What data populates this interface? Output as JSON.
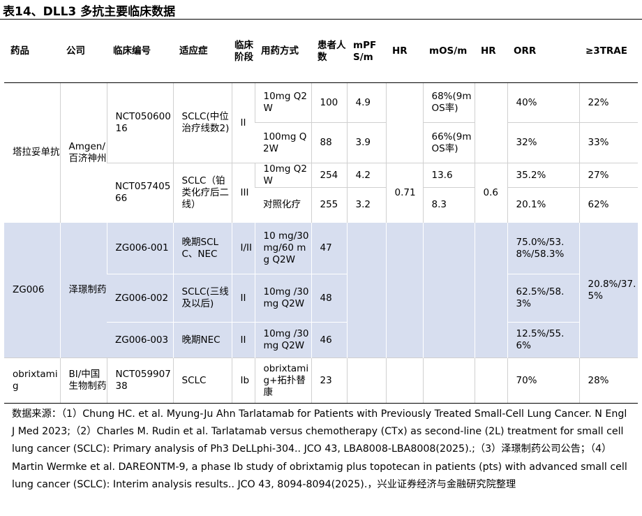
{
  "title": "表14、DLL3 多抗主要临床数据",
  "headers": {
    "drug": "药品",
    "company": "公司",
    "trial": "临床编号",
    "indication": "适应症",
    "stage": "临床阶段",
    "regimen": "用药方式",
    "patients": "患者人数",
    "mpfs": "mPFS/m",
    "hr1": "HR",
    "mos": "mOS/m",
    "hr2": "HR",
    "orr": "ORR",
    "trae": "≥3TRAE"
  },
  "rows": {
    "r1": {
      "drug": "塔拉妥单抗",
      "company": "Amgen/百济神州",
      "trial": "NCT05060016",
      "indication": "SCLC(中位治疗线数2)",
      "stage": "II",
      "regimen": "10mg Q2W",
      "patients": "100",
      "mpfs": "4.9",
      "mos": "68%(9m OS率)",
      "orr": "40%",
      "trae": "22%"
    },
    "r2": {
      "regimen": "100mg Q2W",
      "patients": "88",
      "mpfs": "3.9",
      "mos": "66%(9m OS率)",
      "orr": "32%",
      "trae": "33%"
    },
    "r3": {
      "trial": "NCT05740566",
      "indication": "SCLC（铂类化疗后二线）",
      "stage": "III",
      "regimen": "10mg Q2W",
      "patients": "254",
      "mpfs": "4.2",
      "hr1": "0.71",
      "mos": "13.6",
      "hr2": "0.6",
      "orr": "35.2%",
      "trae": "27%"
    },
    "r4": {
      "regimen": "对照化疗",
      "patients": "255",
      "mpfs": "3.2",
      "mos": "8.3",
      "orr": "20.1%",
      "trae": "62%"
    },
    "r5": {
      "drug": "ZG006",
      "company": "泽璟制药",
      "trial": "ZG006-001",
      "indication": "晚期SCLC、NEC",
      "stage": "I/II",
      "regimen": "10 mg/30 mg/60 mg Q2W",
      "patients": "47",
      "orr": "75.0%/53.8%/58.3%"
    },
    "r6": {
      "trial": "ZG006-002",
      "indication": "SCLC(三线及以后)",
      "stage": "II",
      "regimen": "10mg /30mg Q2W",
      "patients": "48",
      "orr": "62.5%/58.3%",
      "trae": "20.8%/37.5%"
    },
    "r7": {
      "trial": "ZG006-003",
      "indication": "晚期NEC",
      "stage": "II",
      "regimen": "10mg /30mg Q2W",
      "patients": "46",
      "orr": "12.5%/55.6%"
    },
    "r8": {
      "drug": "obrixtamig",
      "company": "BI/中国生物制药",
      "trial": "NCT05990738",
      "indication": "SCLC",
      "stage": "Ib",
      "regimen": "obrixtamig+拓扑替康",
      "patients": "23",
      "orr": "70%",
      "trae": "28%"
    }
  },
  "source": "数据来源：（1）Chung HC. et al. Myung-Ju Ahn Tarlatamab for Patients with Previously Treated Small-Cell Lung Cancer. N Engl J Med 2023;（2）Charles M. Rudin et al. Tarlatamab versus chemotherapy (CTx) as second-line (2L) treatment for small cell lung cancer (SCLC): Primary analysis of Ph3 DeLLphi-304.. JCO 43, LBA8008-LBA8008(2025).;（3）泽璟制药公司公告；（4）Martin Wermke et al. DAREONTM-9, a phase Ib study of obrixtamig plus topotecan in patients (pts) with advanced small cell lung cancer (SCLC): Interim analysis results.. JCO 43, 8094-8094(2025).，兴业证券经济与金融研究院整理",
  "colors": {
    "highlight_band": "#d7deef",
    "rule": "#000000",
    "grid": "#d0d0d0"
  }
}
